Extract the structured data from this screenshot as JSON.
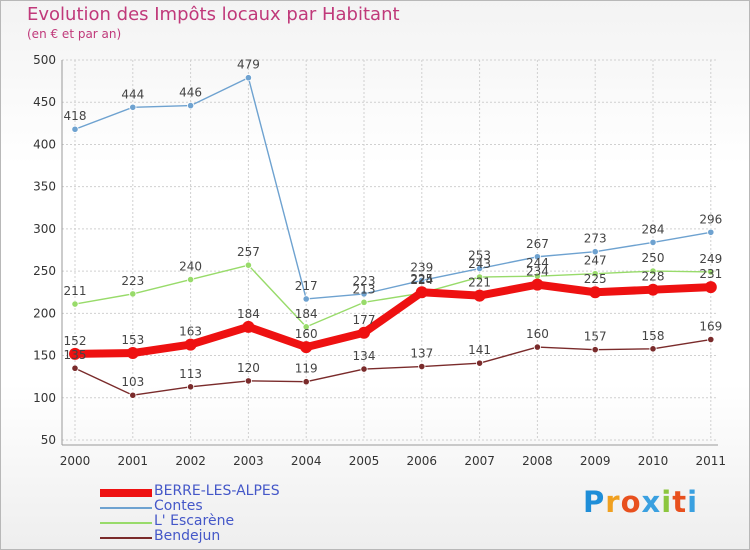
{
  "title": "Evolution des Impôts locaux par Habitant",
  "subtitle": "(en € et par an)",
  "logo": "Proxiti",
  "chart_data": {
    "type": "line",
    "x": [
      "2000",
      "2001",
      "2002",
      "2003",
      "2004",
      "2005",
      "2006",
      "2007",
      "2008",
      "2009",
      "2010",
      "2011"
    ],
    "ylim": [
      50,
      500
    ],
    "yticks": [
      50,
      100,
      150,
      200,
      250,
      300,
      350,
      400,
      450,
      500
    ],
    "grid": true,
    "series": [
      {
        "name": "BERRE-LES-ALPES",
        "color": "#ee1111",
        "values": [
          152,
          153,
          163,
          184,
          160,
          177,
          225,
          221,
          234,
          225,
          228,
          231
        ]
      },
      {
        "name": "Contes",
        "color": "#6ea2d0",
        "values": [
          418,
          444,
          446,
          479,
          217,
          223,
          239,
          253,
          267,
          273,
          284,
          296
        ]
      },
      {
        "name": "L' Escarène",
        "color": "#98db6a",
        "values": [
          211,
          223,
          240,
          257,
          184,
          213,
          224,
          243,
          244,
          247,
          250,
          249
        ]
      },
      {
        "name": "Bendejun",
        "color": "#7a2b2b",
        "values": [
          135,
          103,
          113,
          120,
          119,
          134,
          137,
          141,
          160,
          157,
          158,
          169
        ]
      }
    ]
  }
}
